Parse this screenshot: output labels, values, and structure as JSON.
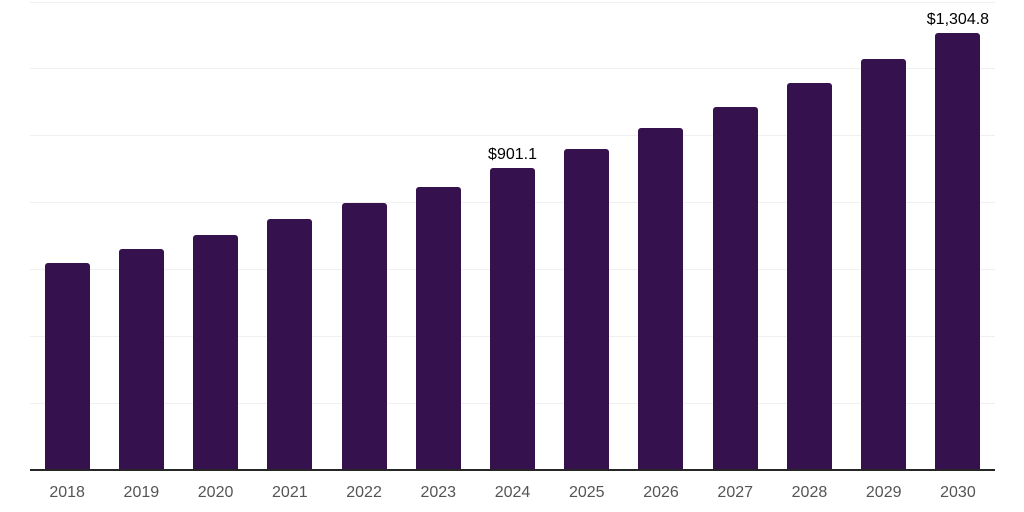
{
  "chart_data": {
    "type": "bar",
    "title": "",
    "xlabel": "",
    "ylabel": "",
    "categories": [
      "2018",
      "2019",
      "2020",
      "2021",
      "2022",
      "2023",
      "2024",
      "2025",
      "2026",
      "2027",
      "2028",
      "2029",
      "2030"
    ],
    "values": [
      620,
      660,
      702,
      750,
      798,
      847,
      901.1,
      960,
      1021,
      1086,
      1156,
      1229,
      1304.8
    ],
    "data_labels": [
      "",
      "",
      "",
      "",
      "",
      "",
      "$901.1",
      "",
      "",
      "",
      "",
      "",
      "$1,304.8"
    ],
    "ylim": [
      0,
      1400
    ],
    "gridline_interval": 200,
    "grid": "horizontal, no y-axis tick labels",
    "legend": "none",
    "colors": {
      "bar": "#35114d",
      "gridline": "#f0f0f0",
      "axis_line": "#262626",
      "tick_label": "#545454",
      "data_label": "#000000",
      "background": "#ffffff"
    }
  }
}
